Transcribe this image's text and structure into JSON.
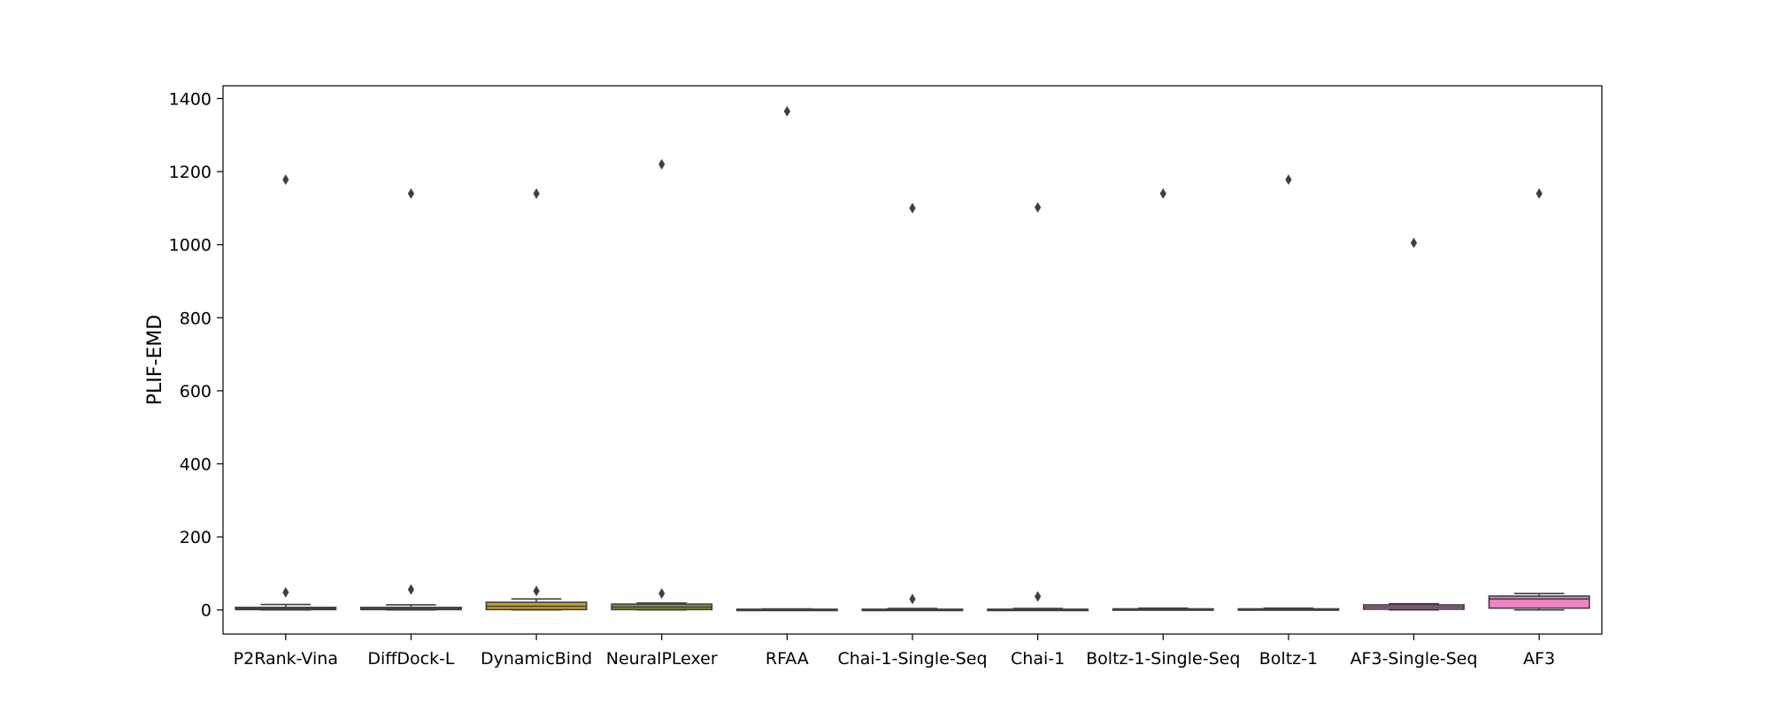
{
  "chart_data": {
    "type": "box",
    "title": "",
    "xlabel": "",
    "ylabel": "PLIF-EMD",
    "ylim": [
      -66,
      1435
    ],
    "yticks": [
      0,
      200,
      400,
      600,
      800,
      1000,
      1200,
      1400
    ],
    "grid": false,
    "legend": "none",
    "categories": [
      "P2Rank-Vina",
      "DiffDock-L",
      "DynamicBind",
      "NeuralPLexer",
      "RFAA",
      "Chai-1-Single-Seq",
      "Chai-1",
      "Boltz-1-Single-Seq",
      "Boltz-1",
      "AF3-Single-Seq",
      "AF3"
    ],
    "boxes": [
      {
        "name": "P2Rank-Vina",
        "color": "#4a5ea8",
        "whisker_low": 0,
        "q1": 1,
        "median": 3,
        "q3": 7,
        "whisker_high": 15,
        "outliers": [
          48,
          1178
        ]
      },
      {
        "name": "DiffDock-L",
        "color": "#9b6f3f",
        "whisker_low": 0,
        "q1": 1,
        "median": 3,
        "q3": 7,
        "whisker_high": 14,
        "outliers": [
          56,
          1140
        ]
      },
      {
        "name": "DynamicBind",
        "color": "#c9a227",
        "whisker_low": 0,
        "q1": 1,
        "median": 10,
        "q3": 21,
        "whisker_high": 30,
        "outliers": [
          52,
          1140
        ]
      },
      {
        "name": "NeuralPLexer",
        "color": "#8a9a2b",
        "whisker_low": 0,
        "q1": 1,
        "median": 8,
        "q3": 16,
        "whisker_high": 19,
        "outliers": [
          45,
          1220
        ]
      },
      {
        "name": "RFAA",
        "color": "#2f9e68",
        "whisker_low": 0,
        "q1": 0,
        "median": 1,
        "q3": 2,
        "whisker_high": 3,
        "outliers": [
          1365
        ]
      },
      {
        "name": "Chai-1-Single-Seq",
        "color": "#2b9fa3",
        "whisker_low": 0,
        "q1": 0,
        "median": 1,
        "q3": 2,
        "whisker_high": 4,
        "outliers": [
          30,
          1100
        ]
      },
      {
        "name": "Chai-1",
        "color": "#3b95c4",
        "whisker_low": 0,
        "q1": 0,
        "median": 1,
        "q3": 2,
        "whisker_high": 4,
        "outliers": [
          37,
          1102
        ]
      },
      {
        "name": "Boltz-1-Single-Seq",
        "color": "#7a8fd6",
        "whisker_low": 0,
        "q1": 0,
        "median": 1,
        "q3": 3,
        "whisker_high": 5,
        "outliers": [
          1140
        ]
      },
      {
        "name": "Boltz-1",
        "color": "#a77bd1",
        "whisker_low": 0,
        "q1": 0,
        "median": 1,
        "q3": 3,
        "whisker_high": 5,
        "outliers": [
          1178
        ]
      },
      {
        "name": "AF3-Single-Seq",
        "color": "#cf79c3",
        "whisker_low": 0,
        "q1": 2,
        "median": 8,
        "q3": 14,
        "whisker_high": 17,
        "outliers": [
          1005
        ]
      },
      {
        "name": "AF3",
        "color": "#ee86c4",
        "whisker_low": 0,
        "q1": 5,
        "median": 30,
        "q3": 38,
        "whisker_high": 45,
        "outliers": [
          1140
        ]
      }
    ]
  }
}
